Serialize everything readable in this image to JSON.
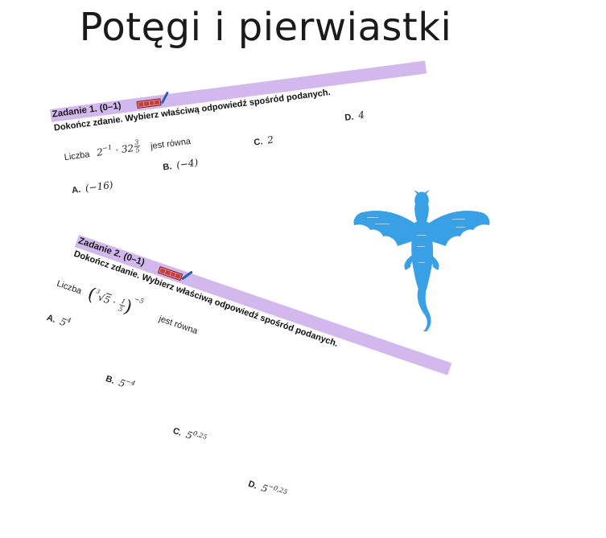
{
  "page_title": "Potęgi i pierwiastki",
  "task1": {
    "heading": "Zadanie 1. (0–1)",
    "instruction": "Dokończ zdanie. Wybierz właściwą odpowiedź spośród podanych.",
    "lead": "Liczba",
    "expr_base1": "2",
    "expr_exp1": "−1",
    "expr_dot": "·",
    "expr_base2": "32",
    "expr_exp2_num": "3",
    "expr_exp2_den": "5",
    "tail": "jest równa",
    "options": [
      {
        "letter": "A.",
        "value": "(−16)"
      },
      {
        "letter": "B.",
        "value": "(−4)"
      },
      {
        "letter": "C.",
        "value": "2"
      },
      {
        "letter": "D.",
        "value": "4"
      }
    ]
  },
  "task2": {
    "heading": "Zadanie 2. (0–1)",
    "instruction": "Dokończ zdanie. Wybierz właściwą odpowiedź spośród podanych.",
    "lead": "Liczba",
    "root_index": "3",
    "root_radicand": "5",
    "frac_num": "1",
    "frac_den": "5",
    "outer_exp": "−5",
    "tail": "jest równa",
    "options": [
      {
        "letter": "A.",
        "base": "5",
        "exp": "4"
      },
      {
        "letter": "B.",
        "base": "5",
        "exp": "−4"
      },
      {
        "letter": "C.",
        "base": "5",
        "exp": "0,25"
      },
      {
        "letter": "D.",
        "base": "5",
        "exp": "−0,25"
      }
    ]
  },
  "colors": {
    "band": "#d3b8ee",
    "dragon": "#3aa0e6",
    "badge": "#e88a8a",
    "pencil": "#2a5fb0"
  },
  "decorations": {
    "dragon_icon": "dragon-icon",
    "score_badge_icon": "score-badge-icon",
    "pencil_icon": "pencil-icon"
  }
}
